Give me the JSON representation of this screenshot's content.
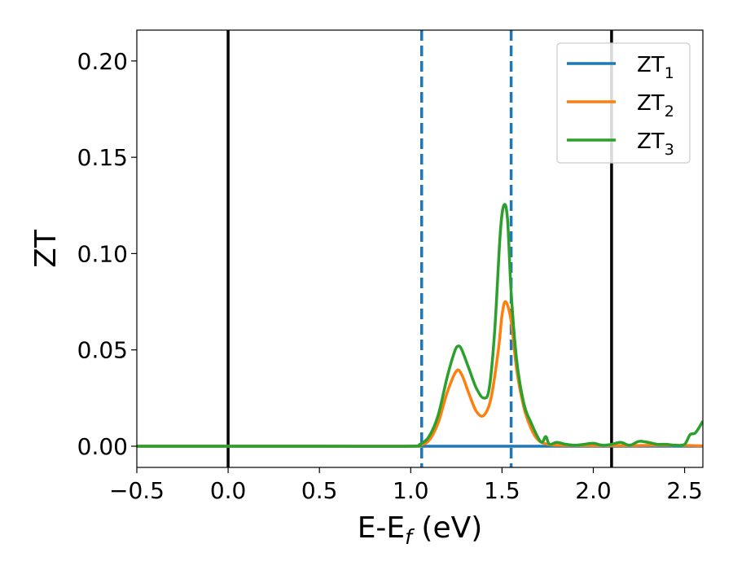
{
  "chart_data": {
    "type": "line",
    "xlabel": "E-E",
    "xlabel_sub": "f",
    "xlabel_unit": " (eV)",
    "ylabel": "ZT",
    "xlim": [
      -0.5,
      2.6
    ],
    "ylim": [
      -0.011,
      0.216
    ],
    "xticks": [
      -0.5,
      0.0,
      0.5,
      1.0,
      1.5,
      2.0,
      2.5
    ],
    "xtick_labels": [
      "−0.5",
      "0.0",
      "0.5",
      "1.0",
      "1.5",
      "2.0",
      "2.5"
    ],
    "yticks": [
      0.0,
      0.05,
      0.1,
      0.15,
      0.2
    ],
    "ytick_labels": [
      "0.00",
      "0.05",
      "0.10",
      "0.15",
      "0.20"
    ],
    "grid": false,
    "legend_position": "top-right",
    "vertical_lines": [
      {
        "x": 0.0,
        "style": "solid",
        "color": "#000000"
      },
      {
        "x": 2.1,
        "style": "solid",
        "color": "#000000"
      },
      {
        "x": 1.06,
        "style": "dashed",
        "color": "#1f77b4"
      },
      {
        "x": 1.55,
        "style": "dashed",
        "color": "#1f77b4"
      }
    ],
    "series": [
      {
        "name": "ZT",
        "name_sub": "1",
        "color": "#1f77b4",
        "x": [
          -0.5,
          0.0,
          0.5,
          1.0,
          1.5,
          2.0,
          2.6
        ],
        "y": [
          0,
          0,
          0,
          0,
          0,
          0,
          0
        ]
      },
      {
        "name": "ZT",
        "name_sub": "2",
        "color": "#ff7f0e",
        "x": [
          -0.5,
          0.5,
          1.0,
          1.05,
          1.1,
          1.15,
          1.2,
          1.25,
          1.28,
          1.32,
          1.36,
          1.4,
          1.44,
          1.48,
          1.5,
          1.52,
          1.55,
          1.58,
          1.62,
          1.66,
          1.7,
          1.75,
          1.8,
          2.0,
          2.2,
          2.4,
          2.6
        ],
        "y": [
          0,
          0,
          0,
          0.0005,
          0.003,
          0.012,
          0.028,
          0.039,
          0.037,
          0.027,
          0.018,
          0.016,
          0.025,
          0.05,
          0.068,
          0.075,
          0.065,
          0.04,
          0.02,
          0.009,
          0.003,
          0.001,
          0.0005,
          0.0003,
          0.0003,
          0.0005,
          0.0002
        ]
      },
      {
        "name": "ZT",
        "name_sub": "3",
        "color": "#2ca02c",
        "x": [
          -0.5,
          0.5,
          1.0,
          1.05,
          1.1,
          1.15,
          1.2,
          1.24,
          1.26,
          1.28,
          1.32,
          1.36,
          1.4,
          1.43,
          1.46,
          1.49,
          1.51,
          1.53,
          1.55,
          1.58,
          1.62,
          1.66,
          1.7,
          1.72,
          1.74,
          1.76,
          1.8,
          1.85,
          1.9,
          1.95,
          2.0,
          2.05,
          2.1,
          2.15,
          2.2,
          2.25,
          2.3,
          2.35,
          2.4,
          2.45,
          2.5,
          2.53,
          2.56,
          2.6
        ],
        "y": [
          0,
          0,
          0,
          0.001,
          0.005,
          0.016,
          0.036,
          0.049,
          0.052,
          0.05,
          0.04,
          0.03,
          0.025,
          0.03,
          0.06,
          0.11,
          0.125,
          0.118,
          0.08,
          0.045,
          0.022,
          0.012,
          0.004,
          0.002,
          0.005,
          0.001,
          0.002,
          0.001,
          0.0005,
          0.001,
          0.0015,
          0.0005,
          0.001,
          0.002,
          0.0005,
          0.0025,
          0.002,
          0.001,
          0.001,
          0.0005,
          0.001,
          0.006,
          0.007,
          0.013
        ]
      }
    ]
  }
}
